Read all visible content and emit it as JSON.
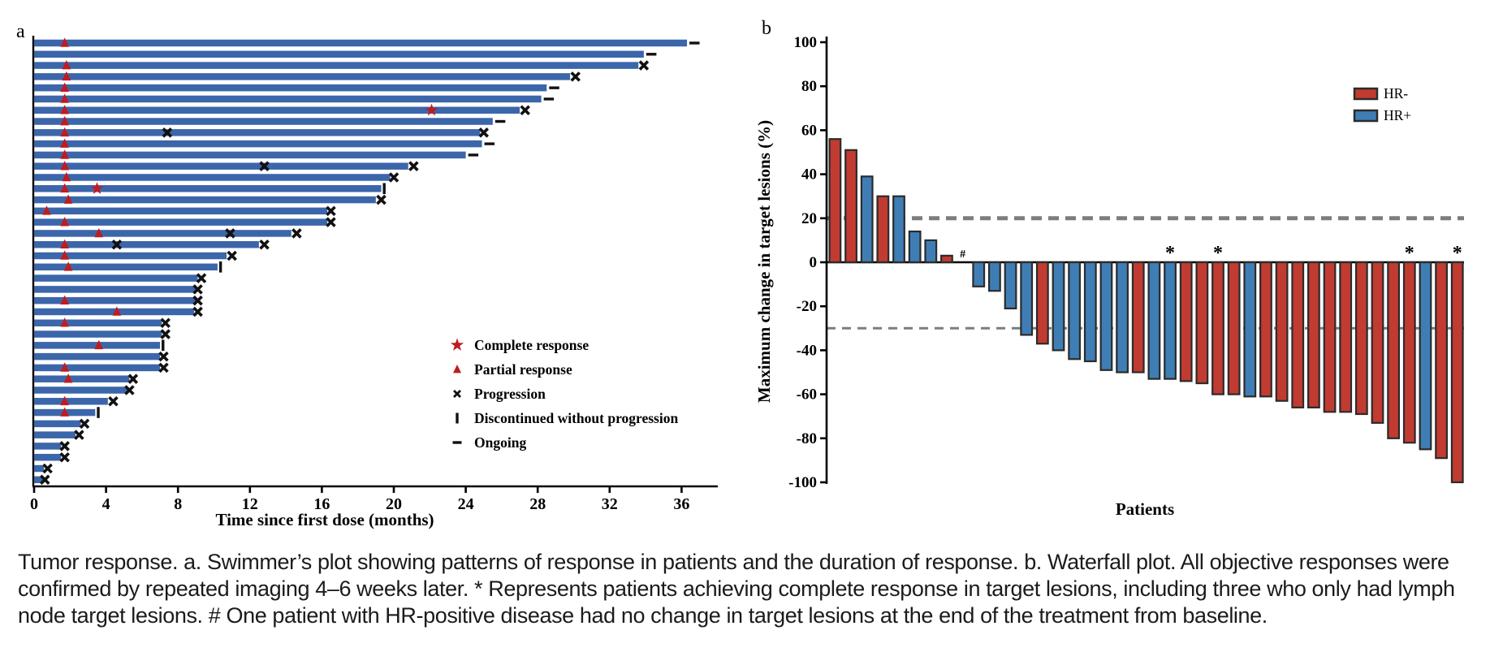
{
  "caption": {
    "lines": [
      "Tumor response. a. Swimmer’s plot showing patterns of response in patients and the duration of response. b. Waterfall plot. All objective responses were",
      "confirmed by repeated imaging 4–6 weeks later. * Represents patients achieving complete response in target lesions, including three who only had lymph",
      "node target lesions. # One patient with HR-positive disease had no change in target lesions at the end of the treatment from baseline."
    ]
  },
  "chart_data": [
    {
      "type": "bar",
      "id": "swimmer-plot",
      "orientation": "horizontal",
      "panel_label": "a",
      "xlabel": "Time since first dose (months)",
      "xlim": [
        0,
        38
      ],
      "x_ticks": [
        0,
        4,
        8,
        12,
        16,
        20,
        24,
        28,
        32,
        36
      ],
      "bar_color": "#3c66aa",
      "marker_color_red": "#c01b20",
      "marker_color_black": "#111111",
      "legend": [
        {
          "marker": "star",
          "label": "Complete response"
        },
        {
          "marker": "triangle",
          "label": "Partial response"
        },
        {
          "marker": "x",
          "label": "Progression"
        },
        {
          "marker": "vbar",
          "label": "Discontinued without progression"
        },
        {
          "marker": "dash",
          "label": "Ongoing"
        }
      ],
      "patients": [
        {
          "duration": 36.3,
          "partial_response": [
            1.7
          ],
          "complete_response": [],
          "progression": [],
          "end": "ongoing"
        },
        {
          "duration": 33.9,
          "partial_response": [],
          "complete_response": [],
          "progression": [],
          "end": "ongoing"
        },
        {
          "duration": 33.6,
          "partial_response": [
            1.8
          ],
          "complete_response": [],
          "progression": [
            33.9
          ],
          "end": null
        },
        {
          "duration": 29.8,
          "partial_response": [
            1.8
          ],
          "complete_response": [],
          "progression": [
            30.1
          ],
          "end": null
        },
        {
          "duration": 28.5,
          "partial_response": [
            1.7
          ],
          "complete_response": [],
          "progression": [],
          "end": "ongoing"
        },
        {
          "duration": 28.2,
          "partial_response": [
            1.7
          ],
          "complete_response": [],
          "progression": [],
          "end": "ongoing"
        },
        {
          "duration": 27.0,
          "partial_response": [
            1.7
          ],
          "complete_response": [
            22.1
          ],
          "progression": [
            27.3
          ],
          "end": null
        },
        {
          "duration": 25.5,
          "partial_response": [
            1.7
          ],
          "complete_response": [],
          "progression": [],
          "end": "ongoing"
        },
        {
          "duration": 24.8,
          "partial_response": [
            1.7
          ],
          "complete_response": [],
          "progression": [
            7.4,
            25.0
          ],
          "end": null
        },
        {
          "duration": 24.9,
          "partial_response": [
            1.7
          ],
          "complete_response": [],
          "progression": [],
          "end": "ongoing"
        },
        {
          "duration": 24.0,
          "partial_response": [
            1.7
          ],
          "complete_response": [],
          "progression": [],
          "end": "ongoing"
        },
        {
          "duration": 20.8,
          "partial_response": [
            1.7
          ],
          "complete_response": [],
          "progression": [
            12.8,
            21.1
          ],
          "end": null
        },
        {
          "duration": 19.8,
          "partial_response": [
            1.8
          ],
          "complete_response": [],
          "progression": [
            20.0
          ],
          "end": null
        },
        {
          "duration": 19.3,
          "partial_response": [
            1.7
          ],
          "complete_response": [
            3.5
          ],
          "progression": [],
          "end": "discontinued"
        },
        {
          "duration": 19.0,
          "partial_response": [
            1.9
          ],
          "complete_response": [],
          "progression": [
            19.3
          ],
          "end": null
        },
        {
          "duration": 16.3,
          "partial_response": [
            0.7
          ],
          "complete_response": [],
          "progression": [
            16.5
          ],
          "end": null
        },
        {
          "duration": 16.3,
          "partial_response": [
            1.7
          ],
          "complete_response": [],
          "progression": [
            16.5
          ],
          "end": null
        },
        {
          "duration": 14.3,
          "partial_response": [
            3.6
          ],
          "complete_response": [],
          "progression": [
            10.9,
            14.6
          ],
          "end": null
        },
        {
          "duration": 12.5,
          "partial_response": [
            1.7
          ],
          "complete_response": [],
          "progression": [
            4.6,
            12.8
          ],
          "end": null
        },
        {
          "duration": 10.7,
          "partial_response": [
            1.7
          ],
          "complete_response": [],
          "progression": [
            11.0
          ],
          "end": null
        },
        {
          "duration": 10.2,
          "partial_response": [
            1.9
          ],
          "complete_response": [],
          "progression": [],
          "end": "discontinued"
        },
        {
          "duration": 9.1,
          "partial_response": [],
          "complete_response": [],
          "progression": [
            9.3
          ],
          "end": null
        },
        {
          "duration": 9.0,
          "partial_response": [],
          "complete_response": [],
          "progression": [
            9.1
          ],
          "end": null
        },
        {
          "duration": 9.0,
          "partial_response": [
            1.7
          ],
          "complete_response": [],
          "progression": [
            9.1
          ],
          "end": null
        },
        {
          "duration": 8.9,
          "partial_response": [
            4.6
          ],
          "complete_response": [],
          "progression": [
            9.1
          ],
          "end": null
        },
        {
          "duration": 7.1,
          "partial_response": [
            1.7
          ],
          "complete_response": [],
          "progression": [
            7.3
          ],
          "end": null
        },
        {
          "duration": 7.1,
          "partial_response": [],
          "complete_response": [],
          "progression": [
            7.3
          ],
          "end": null
        },
        {
          "duration": 7.0,
          "partial_response": [
            3.6
          ],
          "complete_response": [],
          "progression": [],
          "end": "discontinued"
        },
        {
          "duration": 7.0,
          "partial_response": [],
          "complete_response": [],
          "progression": [
            7.2
          ],
          "end": null
        },
        {
          "duration": 7.0,
          "partial_response": [
            1.7
          ],
          "complete_response": [],
          "progression": [
            7.2
          ],
          "end": null
        },
        {
          "duration": 5.3,
          "partial_response": [
            1.9
          ],
          "complete_response": [],
          "progression": [
            5.5
          ],
          "end": null
        },
        {
          "duration": 5.2,
          "partial_response": [],
          "complete_response": [],
          "progression": [
            5.3
          ],
          "end": null
        },
        {
          "duration": 4.1,
          "partial_response": [
            1.7
          ],
          "complete_response": [],
          "progression": [
            4.4
          ],
          "end": null
        },
        {
          "duration": 3.4,
          "partial_response": [
            1.7
          ],
          "complete_response": [],
          "progression": [],
          "end": "discontinued"
        },
        {
          "duration": 2.6,
          "partial_response": [],
          "complete_response": [],
          "progression": [
            2.8
          ],
          "end": null
        },
        {
          "duration": 2.3,
          "partial_response": [],
          "complete_response": [],
          "progression": [
            2.5
          ],
          "end": null
        },
        {
          "duration": 1.5,
          "partial_response": [],
          "complete_response": [],
          "progression": [
            1.7
          ],
          "end": null
        },
        {
          "duration": 1.5,
          "partial_response": [],
          "complete_response": [],
          "progression": [
            1.7
          ],
          "end": null
        },
        {
          "duration": 0.55,
          "partial_response": [],
          "complete_response": [],
          "progression": [
            0.75
          ],
          "end": null
        },
        {
          "duration": 0.5,
          "partial_response": [],
          "complete_response": [],
          "progression": [
            0.6
          ],
          "end": null
        }
      ]
    },
    {
      "type": "bar",
      "id": "waterfall-plot",
      "panel_label": "b",
      "ylabel": "Maximum change in target lesions (%)",
      "xlabel": "Patients",
      "ylim": [
        -100,
        100
      ],
      "y_ticks": [
        100,
        80,
        60,
        40,
        20,
        0,
        -20,
        -40,
        -60,
        -80,
        -100
      ],
      "reference_lines": [
        20,
        -30
      ],
      "reference_line_color": "#7d7d7d",
      "colors": {
        "HR-": "#c13b31",
        "HR+": "#3f7eb5"
      },
      "bar_outline": "#2b2b2b",
      "legend": [
        {
          "label": "HR-",
          "color": "#c13b31"
        },
        {
          "label": "HR+",
          "color": "#3f7eb5"
        }
      ],
      "patients": [
        {
          "value": 56,
          "hr": "HR-",
          "mark": null
        },
        {
          "value": 51,
          "hr": "HR-",
          "mark": null
        },
        {
          "value": 39,
          "hr": "HR+",
          "mark": null
        },
        {
          "value": 30,
          "hr": "HR-",
          "mark": null
        },
        {
          "value": 30,
          "hr": "HR+",
          "mark": null
        },
        {
          "value": 14,
          "hr": "HR+",
          "mark": null
        },
        {
          "value": 10,
          "hr": "HR+",
          "mark": null
        },
        {
          "value": 3,
          "hr": "HR-",
          "mark": null
        },
        {
          "value": 0,
          "hr": "HR+",
          "mark": "#"
        },
        {
          "value": -11,
          "hr": "HR+",
          "mark": null
        },
        {
          "value": -13,
          "hr": "HR+",
          "mark": null
        },
        {
          "value": -21,
          "hr": "HR+",
          "mark": null
        },
        {
          "value": -33,
          "hr": "HR+",
          "mark": null
        },
        {
          "value": -37,
          "hr": "HR-",
          "mark": null
        },
        {
          "value": -40,
          "hr": "HR+",
          "mark": null
        },
        {
          "value": -44,
          "hr": "HR+",
          "mark": null
        },
        {
          "value": -45,
          "hr": "HR+",
          "mark": null
        },
        {
          "value": -49,
          "hr": "HR+",
          "mark": null
        },
        {
          "value": -50,
          "hr": "HR+",
          "mark": null
        },
        {
          "value": -50,
          "hr": "HR-",
          "mark": null
        },
        {
          "value": -53,
          "hr": "HR+",
          "mark": null
        },
        {
          "value": -53,
          "hr": "HR+",
          "mark": "*"
        },
        {
          "value": -54,
          "hr": "HR-",
          "mark": null
        },
        {
          "value": -55,
          "hr": "HR-",
          "mark": null
        },
        {
          "value": -60,
          "hr": "HR-",
          "mark": "*"
        },
        {
          "value": -60,
          "hr": "HR-",
          "mark": null
        },
        {
          "value": -61,
          "hr": "HR+",
          "mark": null
        },
        {
          "value": -61,
          "hr": "HR-",
          "mark": null
        },
        {
          "value": -63,
          "hr": "HR-",
          "mark": null
        },
        {
          "value": -66,
          "hr": "HR-",
          "mark": null
        },
        {
          "value": -66,
          "hr": "HR-",
          "mark": null
        },
        {
          "value": -68,
          "hr": "HR-",
          "mark": null
        },
        {
          "value": -68,
          "hr": "HR-",
          "mark": null
        },
        {
          "value": -69,
          "hr": "HR-",
          "mark": null
        },
        {
          "value": -73,
          "hr": "HR-",
          "mark": null
        },
        {
          "value": -80,
          "hr": "HR-",
          "mark": null
        },
        {
          "value": -82,
          "hr": "HR-",
          "mark": "*"
        },
        {
          "value": -85,
          "hr": "HR+",
          "mark": null
        },
        {
          "value": -89,
          "hr": "HR-",
          "mark": null
        },
        {
          "value": -100,
          "hr": "HR-",
          "mark": "*"
        }
      ]
    }
  ]
}
